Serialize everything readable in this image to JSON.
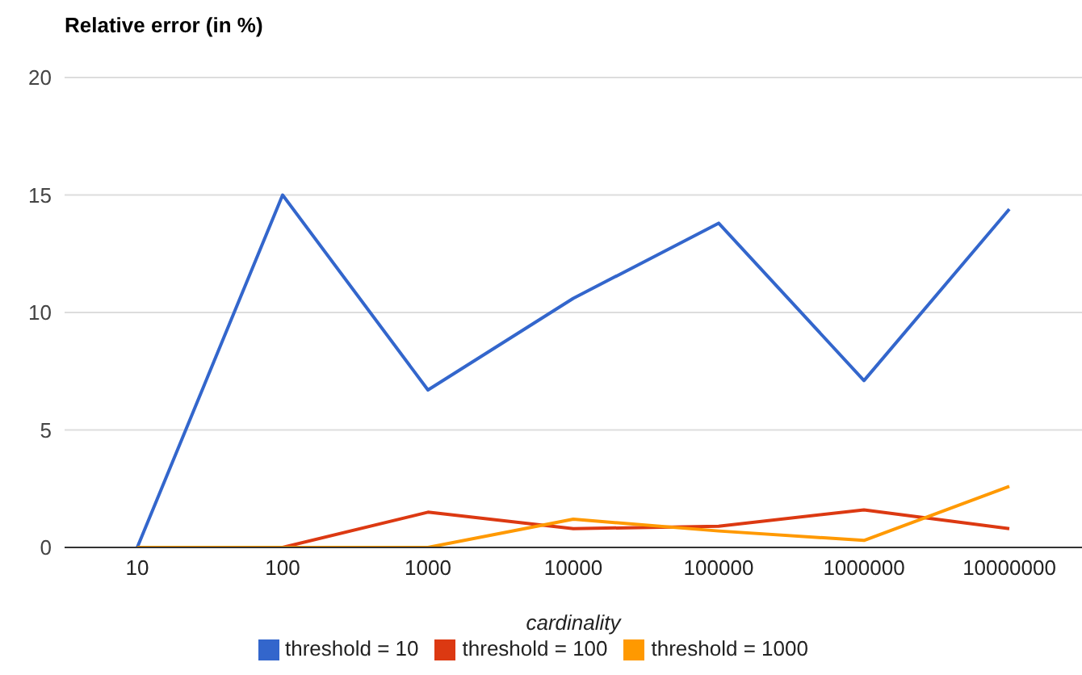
{
  "chart_data": {
    "type": "line",
    "title": "Relative error (in %)",
    "xlabel": "cardinality",
    "categories": [
      "10",
      "100",
      "1000",
      "10000",
      "100000",
      "1000000",
      "10000000"
    ],
    "series": [
      {
        "name": "threshold = 10",
        "color": "#3366cc",
        "values": [
          0,
          15,
          6.7,
          10.6,
          13.8,
          7.1,
          14.4
        ]
      },
      {
        "name": "threshold = 100",
        "color": "#dc3912",
        "values": [
          0,
          0,
          1.5,
          0.8,
          0.9,
          1.6,
          0.8
        ]
      },
      {
        "name": "threshold = 1000",
        "color": "#ff9900",
        "values": [
          0,
          0,
          0,
          1.2,
          0.7,
          0.3,
          2.6
        ]
      }
    ],
    "ylim": [
      0,
      20
    ],
    "yticks": [
      0,
      5,
      10,
      15,
      20
    ],
    "grid": "y",
    "legend": "bottom",
    "marker": "none",
    "line_style": "solid"
  }
}
